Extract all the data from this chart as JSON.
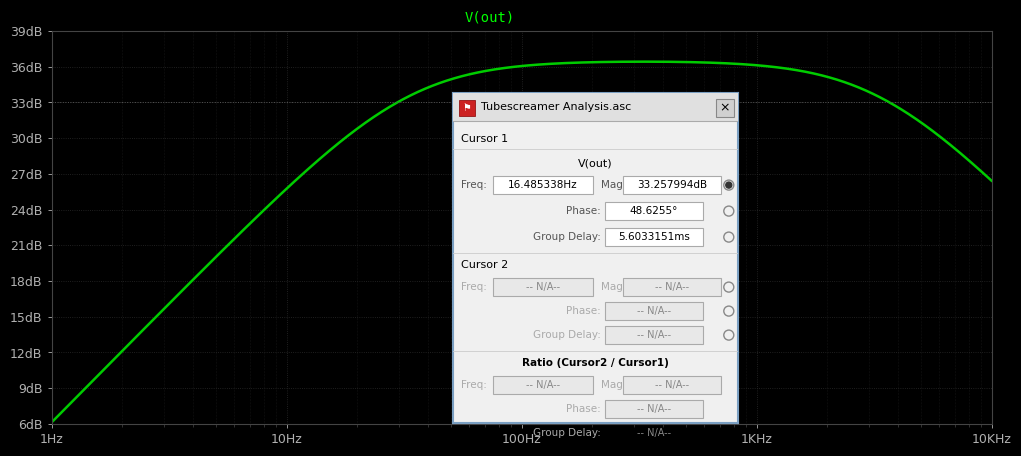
{
  "title": "V(out)",
  "title_color": "#00ff00",
  "bg_color": "#000000",
  "plot_bg_color": "#000000",
  "grid_color": "#2a2a2a",
  "tick_label_color": "#b0b0b0",
  "line_color": "#00cc00",
  "line_width": 1.8,
  "freq_start": 1,
  "freq_end": 10000,
  "y_min": 6,
  "y_max": 39,
  "y_ticks": [
    6,
    9,
    12,
    15,
    18,
    21,
    24,
    27,
    30,
    33,
    36,
    39
  ],
  "y_tick_labels": [
    "6dB",
    "9dB",
    "12dB",
    "15dB",
    "18dB",
    "21dB",
    "24dB",
    "27dB",
    "30dB",
    "33dB",
    "36dB",
    "39dB"
  ],
  "x_ticks": [
    1,
    10,
    100,
    1000,
    10000
  ],
  "x_tick_labels": [
    "1Hz",
    "10Hz",
    "100Hz",
    "1KHz",
    "10KHz"
  ],
  "dotted_line_y": 33,
  "f_low": 33.0,
  "f_high": 3300.0,
  "peak_gain_db": 36.5,
  "dialog": {
    "title": "Tubescreamer Analysis.asc",
    "cursor1_label": "Cursor 1",
    "vout_label": "V(out)",
    "freq_label": "Freq:",
    "freq_value": "16.485338Hz",
    "mag_label": "Mag:",
    "mag_value": "33.257994dB",
    "phase_label": "Phase:",
    "phase_value": "48.6255°",
    "gd_label": "Group Delay:",
    "gd_value": "5.6033151ms",
    "cursor2_label": "Cursor 2",
    "ratio_label": "Ratio (Cursor2 / Cursor1)",
    "na": "-- N/A--",
    "bg_color": "#f0f0f0",
    "title_bar_color": "#e8e8e8",
    "border_color": "#7a9fc2",
    "text_color": "#000000",
    "label_color": "#555555",
    "input_bg": "#ffffff",
    "input_bg_disabled": "#e8e8e8",
    "input_border": "#aaaaaa"
  }
}
